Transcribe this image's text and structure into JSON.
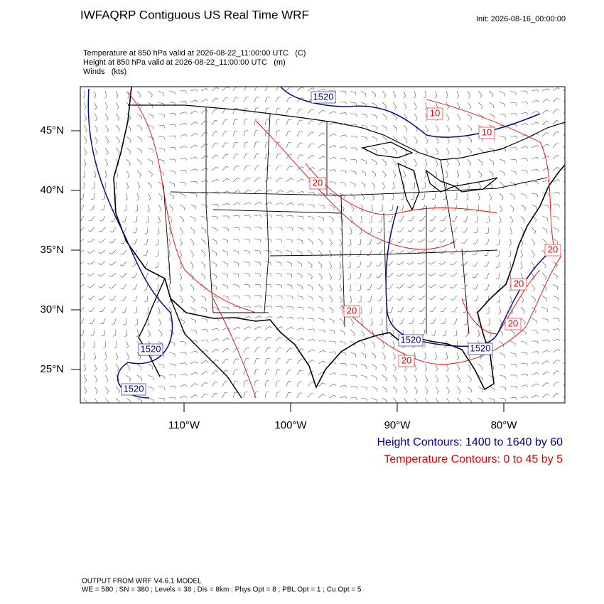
{
  "header": {
    "title": "IWFAQRP Contiguous US Real Time WRF",
    "init": "Init: 2026-08-16_00:00:00",
    "fields": [
      "Temperature at 850 hPa valid at 2026-08-22_11:00:00 UTC   (C)",
      "Height at 850 hPa valid at 2026-08-22_11:00:00 UTC   (m)",
      "Winds   (kts)"
    ]
  },
  "map": {
    "lat_labels": [
      "45°N",
      "40°N",
      "35°N",
      "30°N",
      "25°N"
    ],
    "lon_labels": [
      "110°W",
      "100°W",
      "90°W",
      "80°W"
    ],
    "height_labels": [
      "1520",
      "1520",
      "1520",
      "1520",
      "1520"
    ],
    "temperature_labels": [
      "10",
      "10",
      "20",
      "20",
      "20",
      "20",
      "20",
      "20"
    ]
  },
  "legend": [
    "Height Contours: 1400 to 1640 by 60",
    "Temperature Contours: 0 to 45 by 5"
  ],
  "footer": [
    "OUTPUT FROM WRF V4.6.1 MODEL",
    "WE = 580 ; SN = 380 ; Levels = 38 ; Dis = 8km ; Phys Opt = 8 ; PBL Opt = 1 ; Cu Opt = 5"
  ]
}
